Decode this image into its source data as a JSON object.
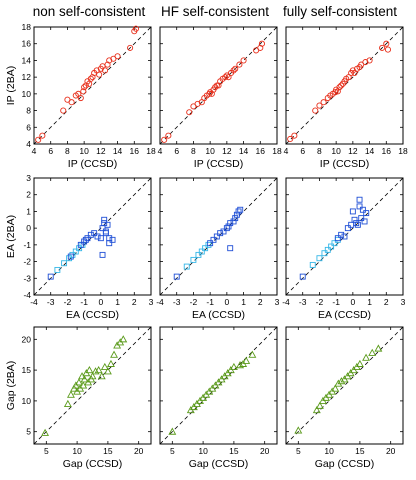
{
  "columns": [
    "non self-consistent",
    "HF self-consistent",
    "fully self-consistent"
  ],
  "rows": [
    {
      "key": "ip",
      "xlabel": "IP (CCSD)",
      "ylabel": "IP (2BA)",
      "lim": [
        4,
        18
      ],
      "xticks": [
        "4",
        "6",
        "8",
        "10",
        "12",
        "14",
        "16",
        "18"
      ],
      "yticks": [
        "4",
        "6",
        "8",
        "10",
        "12",
        "14",
        "16",
        "18"
      ],
      "marker": "circle",
      "color": "#e8301c"
    },
    {
      "key": "ea",
      "xlabel": "EA (CCSD)",
      "ylabel": "EA (2BA)",
      "lim": [
        -4,
        3
      ],
      "xticks": [
        "-4",
        "-3",
        "-2",
        "-1",
        "0",
        "1",
        "2",
        "3"
      ],
      "yticks": [
        "-4",
        "-3",
        "-2",
        "-1",
        "0",
        "1",
        "2",
        "3"
      ],
      "marker": "square",
      "color": "#1f4fd6",
      "color_light": "#35b7e8"
    },
    {
      "key": "gap",
      "xlabel": "Gap (CCSD)",
      "ylabel": "Gap (2BA)",
      "lim": [
        3,
        22
      ],
      "xticks": [
        "5",
        "10",
        "15",
        "20"
      ],
      "yticks": [
        "5",
        "10",
        "15",
        "20"
      ],
      "marker": "triangle",
      "color": "#5a9a1a"
    }
  ],
  "chart_data": [
    {
      "type": "scatter",
      "row": "ip",
      "column": "non self-consistent",
      "xlabel": "IP (CCSD)",
      "ylabel": "IP (2BA)",
      "xlim": [
        4,
        18
      ],
      "ylim": [
        4,
        18
      ],
      "x": [
        4.5,
        5.0,
        7.5,
        8.0,
        8.5,
        9.0,
        9.3,
        9.6,
        9.9,
        10.0,
        10.2,
        10.4,
        10.6,
        10.8,
        11.0,
        11.2,
        11.5,
        11.8,
        12.0,
        12.2,
        12.5,
        12.8,
        13.0,
        13.5,
        14.0,
        15.5,
        16.0,
        16.2
      ],
      "y": [
        4.5,
        5.0,
        8.0,
        9.3,
        9.0,
        9.8,
        10.0,
        9.5,
        10.3,
        10.8,
        11.0,
        11.5,
        11.2,
        11.8,
        12.0,
        12.5,
        12.8,
        12.3,
        13.0,
        13.3,
        12.8,
        13.5,
        14.0,
        14.2,
        14.5,
        15.5,
        17.5,
        17.8
      ]
    },
    {
      "type": "scatter",
      "row": "ip",
      "column": "HF self-consistent",
      "xlabel": "IP (CCSD)",
      "ylabel": "IP (2BA)",
      "xlim": [
        4,
        18
      ],
      "ylim": [
        4,
        18
      ],
      "x": [
        4.5,
        5.0,
        7.5,
        8.0,
        8.5,
        9.0,
        9.3,
        9.6,
        9.9,
        10.0,
        10.2,
        10.4,
        10.6,
        10.8,
        11.0,
        11.2,
        11.5,
        11.8,
        12.0,
        12.2,
        12.5,
        12.8,
        13.0,
        13.5,
        14.0,
        15.5,
        16.0,
        16.2
      ],
      "y": [
        4.5,
        5.0,
        7.8,
        8.5,
        8.8,
        9.0,
        9.5,
        9.8,
        10.0,
        10.2,
        10.0,
        10.5,
        10.8,
        11.0,
        11.0,
        11.5,
        11.8,
        12.0,
        12.2,
        12.0,
        12.5,
        12.8,
        13.0,
        13.5,
        14.0,
        15.2,
        15.5,
        16.0
      ]
    },
    {
      "type": "scatter",
      "row": "ip",
      "column": "fully self-consistent",
      "xlabel": "IP (CCSD)",
      "ylabel": "IP (2BA)",
      "xlim": [
        4,
        18
      ],
      "ylim": [
        4,
        18
      ],
      "x": [
        4.5,
        5.0,
        7.5,
        8.0,
        8.5,
        9.0,
        9.3,
        9.6,
        9.9,
        10.0,
        10.2,
        10.4,
        10.6,
        10.8,
        11.0,
        11.2,
        11.5,
        11.8,
        12.0,
        12.2,
        12.5,
        12.8,
        13.0,
        13.5,
        14.0,
        15.5,
        16.0,
        16.2
      ],
      "y": [
        4.6,
        5.0,
        8.0,
        8.6,
        9.0,
        9.5,
        9.8,
        10.0,
        10.2,
        10.5,
        10.3,
        10.8,
        11.0,
        11.2,
        11.5,
        11.8,
        12.0,
        12.5,
        12.8,
        12.5,
        13.0,
        13.2,
        13.5,
        13.8,
        14.0,
        15.5,
        16.0,
        15.3
      ]
    },
    {
      "type": "scatter",
      "row": "ea",
      "column": "non self-consistent",
      "xlabel": "EA (CCSD)",
      "ylabel": "EA (2BA)",
      "xlim": [
        -4,
        3
      ],
      "ylim": [
        -4,
        3
      ],
      "series": [
        {
          "x": [
            -2.6,
            -2.2,
            -1.9,
            -1.7,
            -1.5,
            -1.3,
            -1.1
          ],
          "y": [
            -2.5,
            -2.1,
            -1.8,
            -1.6,
            -1.4,
            -1.2,
            -1.0
          ]
        },
        {
          "x": [
            -3.0,
            -1.8,
            -1.2,
            -1.0,
            -0.9,
            -0.8,
            -0.6,
            -0.4,
            -0.2,
            0.0,
            0.1,
            0.2,
            0.2,
            0.3,
            0.3,
            0.4,
            0.5,
            0.5,
            0.7,
            0.1
          ],
          "y": [
            -2.9,
            -1.7,
            -1.0,
            -0.8,
            -0.7,
            -0.6,
            -0.4,
            -0.3,
            -0.5,
            -0.6,
            0.0,
            0.3,
            0.5,
            -0.3,
            -0.2,
            0.2,
            -0.9,
            -0.6,
            -0.7,
            -1.6
          ]
        }
      ]
    },
    {
      "type": "scatter",
      "row": "ea",
      "column": "HF self-consistent",
      "xlabel": "EA (CCSD)",
      "ylabel": "EA (2BA)",
      "xlim": [
        -4,
        3
      ],
      "ylim": [
        -4,
        3
      ],
      "series": [
        {
          "x": [
            -2.4,
            -2.0,
            -1.7,
            -1.5,
            -1.3,
            -1.1
          ],
          "y": [
            -2.3,
            -1.9,
            -1.6,
            -1.4,
            -1.2,
            -1.0
          ]
        },
        {
          "x": [
            -3.0,
            -1.0,
            -0.8,
            -0.6,
            -0.4,
            -0.2,
            0.0,
            0.1,
            0.2,
            0.4,
            0.5,
            0.6,
            0.7,
            0.8,
            0.2
          ],
          "y": [
            -2.9,
            -0.9,
            -0.7,
            -0.5,
            -0.3,
            -0.2,
            0.0,
            0.1,
            0.3,
            0.4,
            0.6,
            0.8,
            1.0,
            1.1,
            -1.2
          ]
        }
      ]
    },
    {
      "type": "scatter",
      "row": "ea",
      "column": "fully self-consistent",
      "xlabel": "EA (CCSD)",
      "ylabel": "EA (2BA)",
      "xlim": [
        -4,
        3
      ],
      "ylim": [
        -4,
        3
      ],
      "series": [
        {
          "x": [
            -2.4,
            -2.0,
            -1.7,
            -1.5,
            -1.3,
            -1.1,
            -0.9
          ],
          "y": [
            -2.2,
            -1.8,
            -1.5,
            -1.3,
            -1.1,
            -0.9,
            -0.7
          ]
        },
        {
          "x": [
            -3.0,
            -0.9,
            -0.7,
            -0.5,
            -0.3,
            -0.1,
            0.0,
            0.1,
            0.2,
            0.3,
            0.4,
            0.5,
            0.6,
            0.7,
            0.8,
            0.4
          ],
          "y": [
            -2.9,
            -0.6,
            -0.4,
            -0.5,
            0.0,
            0.2,
            1.0,
            0.5,
            0.3,
            0.2,
            1.7,
            0.6,
            1.1,
            0.4,
            0.9,
            1.3
          ]
        }
      ]
    },
    {
      "type": "scatter",
      "row": "gap",
      "column": "non self-consistent",
      "xlabel": "Gap (CCSD)",
      "ylabel": "Gap (2BA)",
      "xlim": [
        3,
        22
      ],
      "ylim": [
        3,
        22
      ],
      "x": [
        4.8,
        8.5,
        9.0,
        9.5,
        9.8,
        10.0,
        10.3,
        10.5,
        10.8,
        11.0,
        11.2,
        11.5,
        11.8,
        12.0,
        12.3,
        12.5,
        13.0,
        13.5,
        14.0,
        14.5,
        15.0,
        15.5,
        16.0,
        16.5,
        17.0,
        17.5
      ],
      "y": [
        4.8,
        9.5,
        11.0,
        12.0,
        12.5,
        11.5,
        13.0,
        12.0,
        14.0,
        12.5,
        13.5,
        14.5,
        13.0,
        15.0,
        13.5,
        14.0,
        14.8,
        15.0,
        14.0,
        15.5,
        14.8,
        16.0,
        17.5,
        19.0,
        19.5,
        20.0
      ]
    },
    {
      "type": "scatter",
      "row": "gap",
      "column": "HF self-consistent",
      "xlabel": "Gap (CCSD)",
      "ylabel": "Gap (2BA)",
      "xlim": [
        3,
        22
      ],
      "ylim": [
        3,
        22
      ],
      "x": [
        5.0,
        8.0,
        8.5,
        9.0,
        9.5,
        10.0,
        10.5,
        11.0,
        11.5,
        12.0,
        12.5,
        13.0,
        13.5,
        14.0,
        14.5,
        15.0,
        16.0,
        16.5,
        17.0,
        18.0
      ],
      "y": [
        5.0,
        8.5,
        9.0,
        9.5,
        10.0,
        10.5,
        11.0,
        11.5,
        12.0,
        12.5,
        13.0,
        13.5,
        14.0,
        14.5,
        15.0,
        15.5,
        15.8,
        16.0,
        16.5,
        17.5
      ]
    },
    {
      "type": "scatter",
      "row": "gap",
      "column": "fully self-consistent",
      "xlabel": "Gap (CCSD)",
      "ylabel": "Gap (2BA)",
      "xlim": [
        3,
        22
      ],
      "ylim": [
        3,
        22
      ],
      "x": [
        5.0,
        8.0,
        8.5,
        9.0,
        9.5,
        10.0,
        10.5,
        11.0,
        11.5,
        12.0,
        12.5,
        13.0,
        13.5,
        14.0,
        14.5,
        15.0,
        16.0,
        17.0,
        18.0
      ],
      "y": [
        5.2,
        8.5,
        9.2,
        10.0,
        10.5,
        11.0,
        11.5,
        12.0,
        12.8,
        13.2,
        13.5,
        14.0,
        14.5,
        15.0,
        15.5,
        16.0,
        17.0,
        17.8,
        18.5
      ]
    }
  ]
}
